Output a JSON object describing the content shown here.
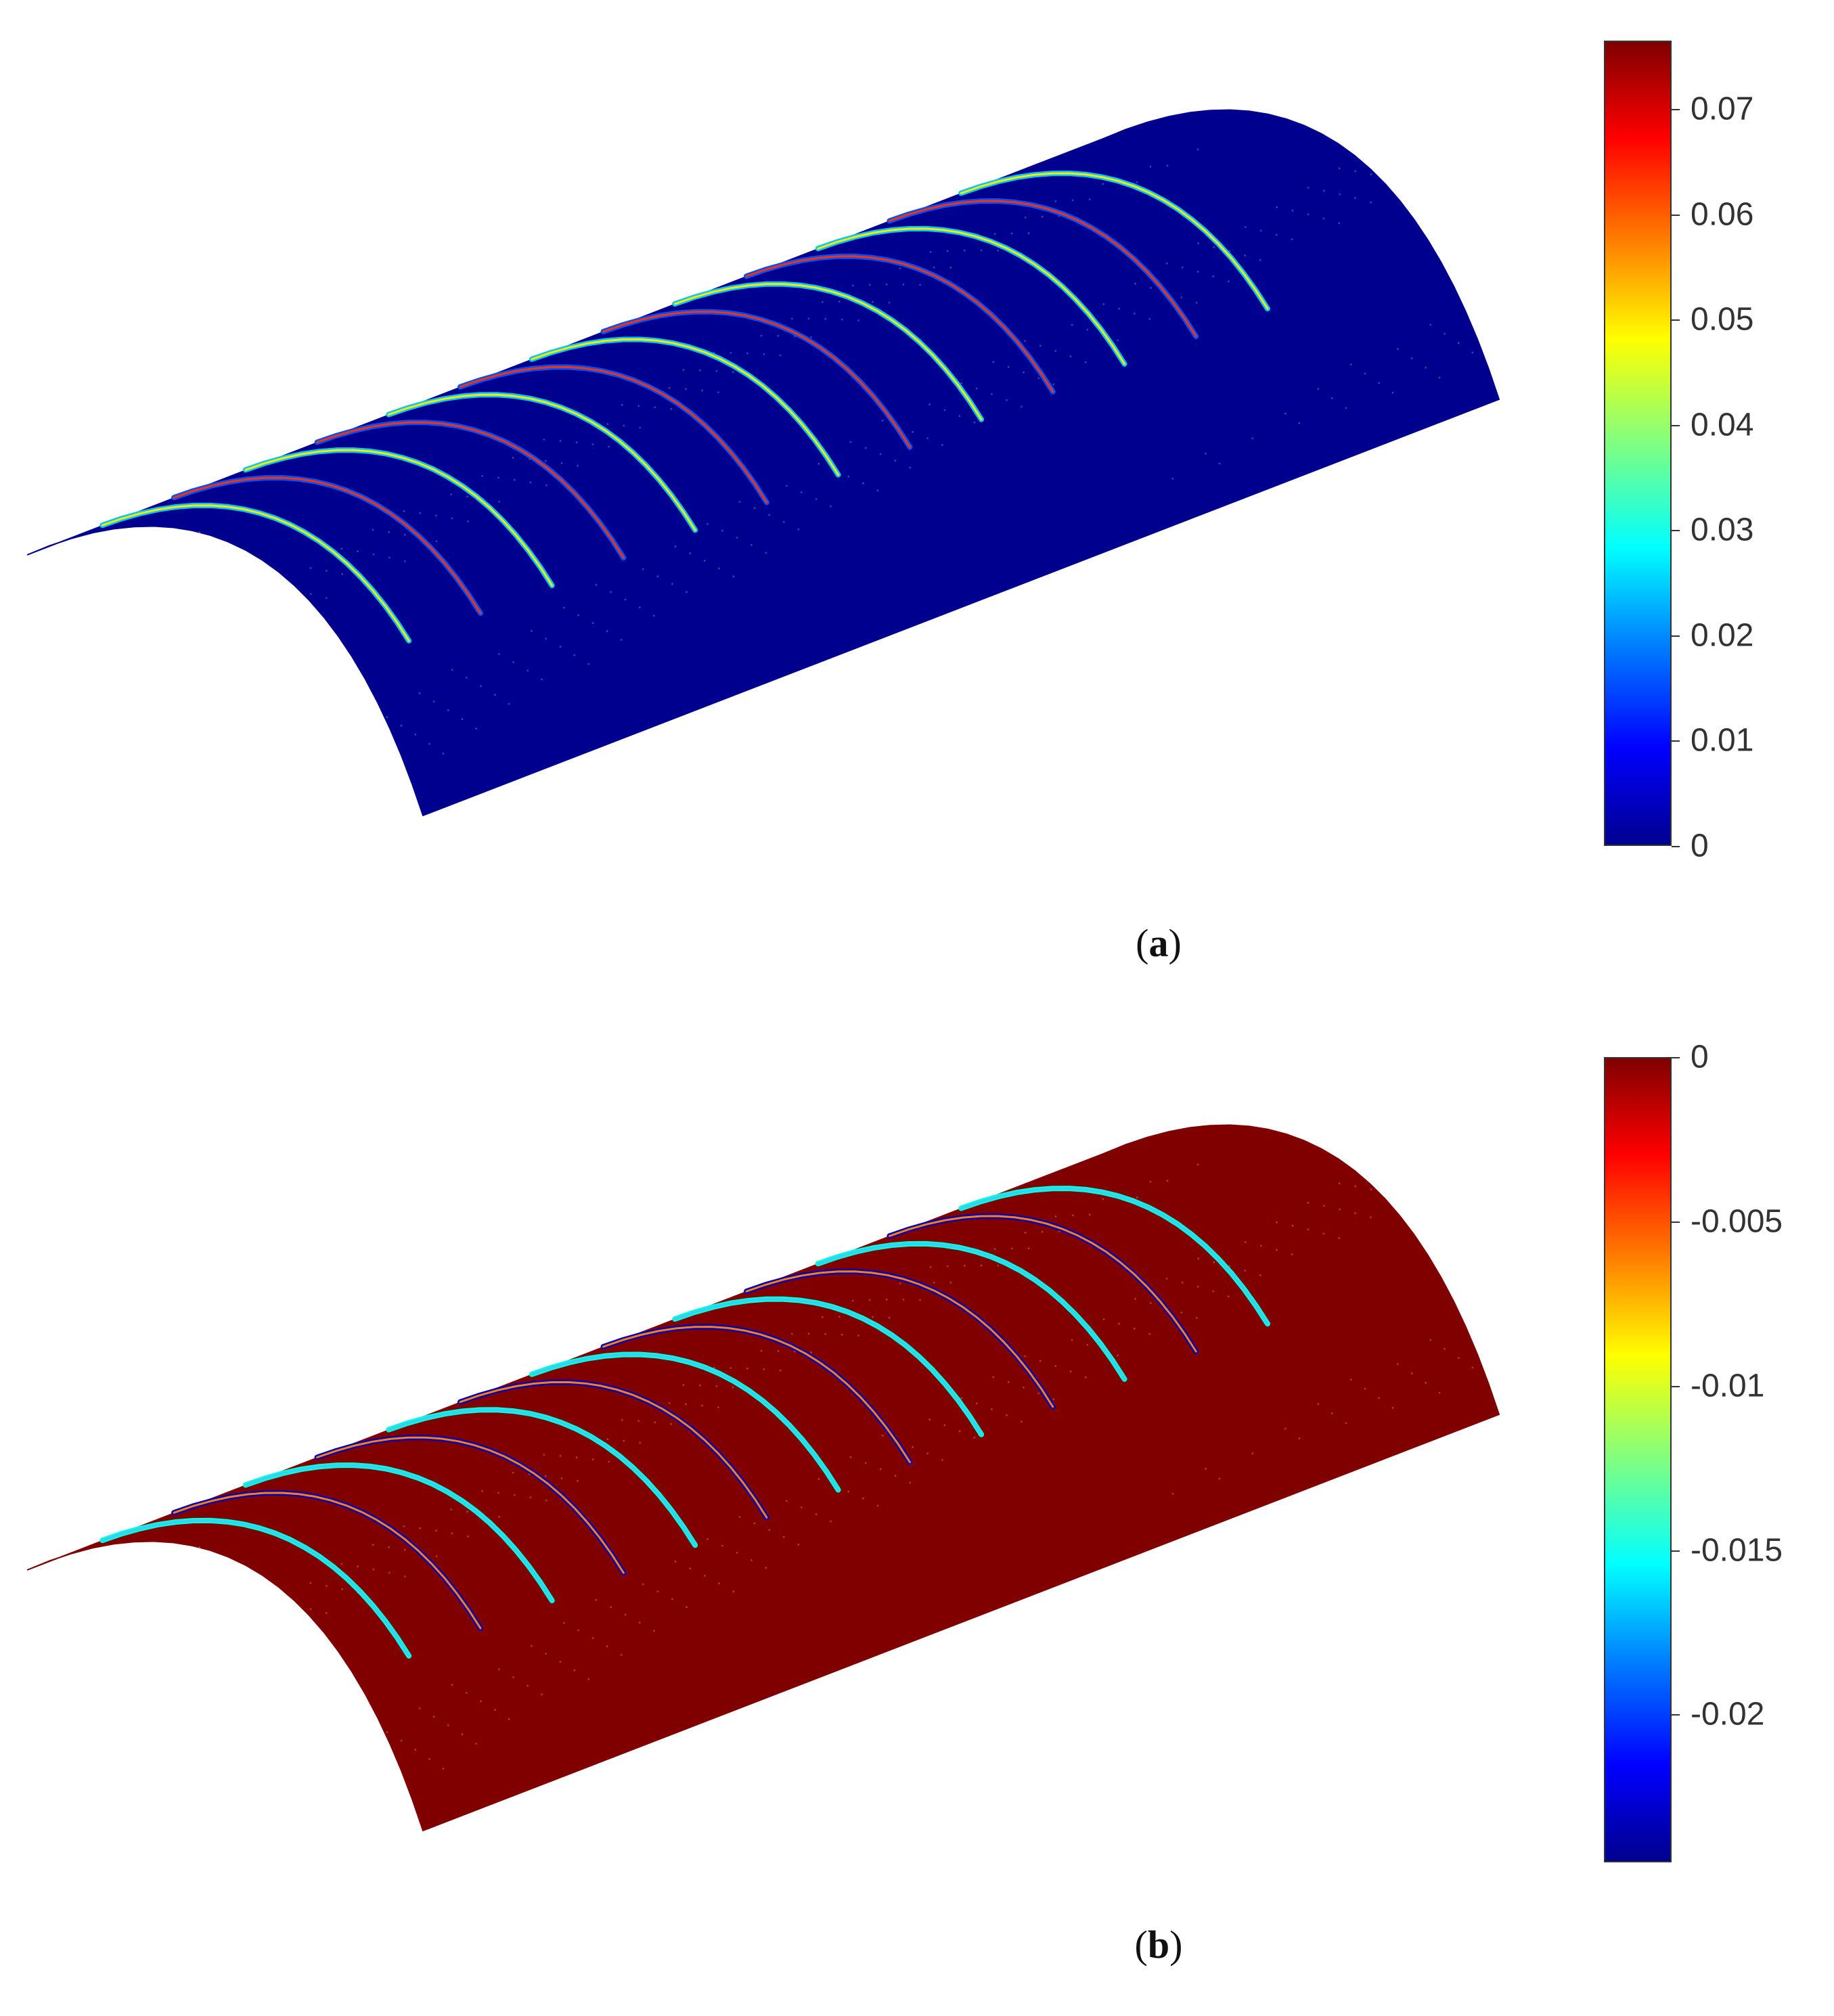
{
  "panels": [
    {
      "id": "a",
      "caption_open": "(",
      "caption_letter": "a",
      "caption_close": ")",
      "surface_color": "#00008f",
      "crack_style": "positive",
      "colorbar": {
        "colormap": "jet",
        "range": [
          0,
          0.0765
        ],
        "ticks": [
          {
            "value": 0.07,
            "label": "0.07"
          },
          {
            "value": 0.06,
            "label": "0.06"
          },
          {
            "value": 0.05,
            "label": "0.05"
          },
          {
            "value": 0.04,
            "label": "0.04"
          },
          {
            "value": 0.03,
            "label": "0.03"
          },
          {
            "value": 0.02,
            "label": "0.02"
          },
          {
            "value": 0.01,
            "label": "0.01"
          },
          {
            "value": 0,
            "label": "0"
          }
        ]
      }
    },
    {
      "id": "b",
      "caption_open": "(",
      "caption_letter": "b",
      "caption_close": ")",
      "surface_color": "#800000",
      "crack_style": "negative",
      "colorbar": {
        "colormap": "jet",
        "range": [
          -0.0245,
          0
        ],
        "ticks": [
          {
            "value": 0,
            "label": "0"
          },
          {
            "value": -0.005,
            "label": "-0.005"
          },
          {
            "value": -0.01,
            "label": "-0.01"
          },
          {
            "value": -0.015,
            "label": "-0.015"
          },
          {
            "value": -0.02,
            "label": "-0.02"
          }
        ]
      }
    }
  ]
}
